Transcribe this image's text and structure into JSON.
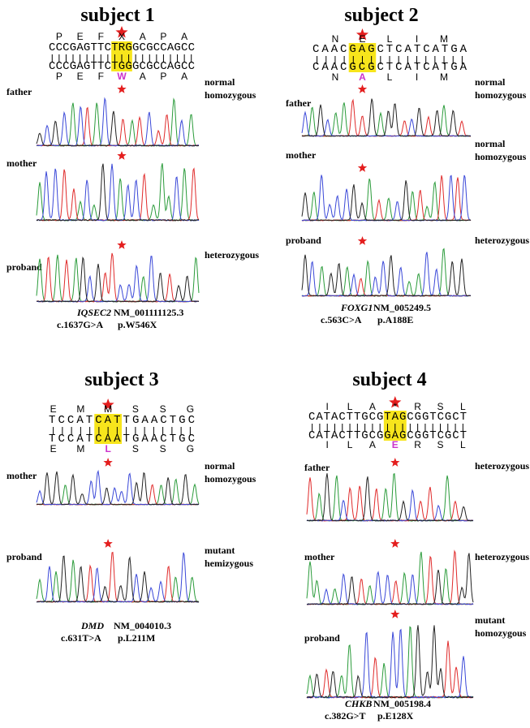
{
  "panels": [
    {
      "title": "subject 1",
      "ref_aa": [
        "P",
        "E",
        "F",
        "X",
        "A",
        "P",
        "A"
      ],
      "ref_seq": "CCCGAGTTCTRGGCGCCAGCC",
      "alt_seq": "CCCGAGTTCTGGGCGCCAGCC",
      "alt_aa": [
        "P",
        "E",
        "F",
        "W",
        "A",
        "P",
        "A"
      ],
      "tracks": [
        {
          "label": "father",
          "status": [
            "normal",
            "homozygous"
          ]
        },
        {
          "label": "mother"
        },
        {
          "label": "proband",
          "status": [
            "heterozygous"
          ]
        }
      ],
      "gene": "IQSEC2",
      "transcript": "NM_001111125.3",
      "cdna": "c.1637G>A",
      "protein": "p.W546X"
    },
    {
      "title": "subject 2",
      "ref_aa": [
        "N",
        "E",
        "L",
        "I",
        "M"
      ],
      "ref_seq": "CAACGAGCTCATCATGA",
      "alt_seq": "CAACGCGCTCATCATGA",
      "alt_aa": [
        "N",
        "A",
        "L",
        "I",
        "M"
      ],
      "tracks": [
        {
          "label": "father",
          "status": [
            "normal",
            "homozygous"
          ]
        },
        {
          "label": "mother",
          "status": [
            "normal",
            "homozygous"
          ]
        },
        {
          "label": "proband",
          "status": [
            "heterozygous"
          ]
        }
      ],
      "gene": "FOXG1",
      "transcript": "NM_005249.5",
      "cdna": "c.563C>A",
      "protein": "p.A188E"
    },
    {
      "title": "subject 3",
      "ref_aa": [
        "E",
        "M",
        "M",
        "S",
        "S",
        "G"
      ],
      "ref_seq": "TCCATCATTGAACTGC",
      "alt_seq": "TCCATCAATGAACTGC",
      "alt_aa": [
        "E",
        "M",
        "L",
        "S",
        "S",
        "G"
      ],
      "tracks": [
        {
          "label": "mother",
          "status": [
            "normal",
            "homozygous"
          ]
        },
        {
          "label": "proband",
          "status": [
            "mutant",
            "hemizygous"
          ]
        }
      ],
      "gene": "DMD",
      "transcript": "NM_004010.3",
      "cdna": "c.631T>A",
      "protein": "p.L211M"
    },
    {
      "title": "subject 4",
      "ref_aa": [
        "I",
        "L",
        "A",
        "*",
        "R",
        "S",
        "L"
      ],
      "ref_seq": "CATACTTGCGTAGCGGTCGCT",
      "alt_seq": "CATACTTGCGGAGCGGTCGCT",
      "alt_aa": [
        "I",
        "L",
        "A",
        "E",
        "R",
        "S",
        "L"
      ],
      "tracks": [
        {
          "label": "father",
          "status": [
            "heterozygous"
          ]
        },
        {
          "label": "mother",
          "status": [
            "heterozygous"
          ]
        },
        {
          "label": "proband",
          "status": [
            "mutant",
            "homozygous"
          ]
        }
      ],
      "gene": "CHKB",
      "transcript": "NM_005198.4",
      "cdna": "c.382G>T",
      "protein": "p.E128X"
    }
  ]
}
